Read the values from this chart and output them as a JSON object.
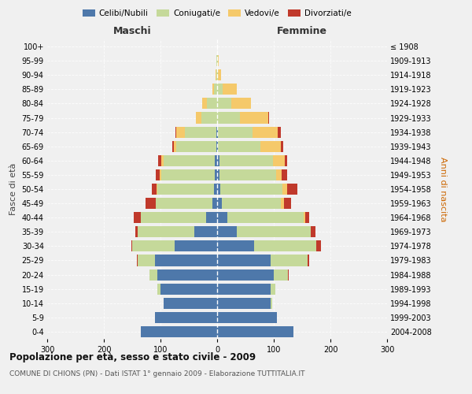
{
  "age_groups": [
    "0-4",
    "5-9",
    "10-14",
    "15-19",
    "20-24",
    "25-29",
    "30-34",
    "35-39",
    "40-44",
    "45-49",
    "50-54",
    "55-59",
    "60-64",
    "65-69",
    "70-74",
    "75-79",
    "80-84",
    "85-89",
    "90-94",
    "95-99",
    "100+"
  ],
  "birth_years": [
    "2004-2008",
    "1999-2003",
    "1994-1998",
    "1989-1993",
    "1984-1988",
    "1979-1983",
    "1974-1978",
    "1969-1973",
    "1964-1968",
    "1959-1963",
    "1954-1958",
    "1949-1953",
    "1944-1948",
    "1939-1943",
    "1934-1938",
    "1929-1933",
    "1924-1928",
    "1919-1923",
    "1914-1918",
    "1909-1913",
    "≤ 1908"
  ],
  "male": {
    "celibi": [
      135,
      110,
      95,
      100,
      105,
      110,
      75,
      40,
      20,
      8,
      5,
      4,
      4,
      2,
      2,
      0,
      0,
      0,
      0,
      0,
      0
    ],
    "coniugati": [
      0,
      0,
      0,
      5,
      15,
      30,
      75,
      100,
      115,
      100,
      100,
      95,
      90,
      70,
      55,
      28,
      18,
      5,
      2,
      1,
      0
    ],
    "vedovi": [
      0,
      0,
      0,
      0,
      0,
      0,
      0,
      0,
      0,
      1,
      2,
      2,
      5,
      5,
      15,
      10,
      8,
      4,
      1,
      0,
      0
    ],
    "divorziati": [
      0,
      0,
      0,
      0,
      0,
      1,
      2,
      5,
      12,
      18,
      8,
      8,
      5,
      2,
      2,
      0,
      0,
      0,
      0,
      0,
      0
    ]
  },
  "female": {
    "nubili": [
      135,
      105,
      95,
      95,
      100,
      95,
      65,
      35,
      18,
      8,
      5,
      4,
      4,
      2,
      2,
      0,
      0,
      0,
      0,
      0,
      0
    ],
    "coniugate": [
      0,
      0,
      2,
      8,
      25,
      65,
      110,
      130,
      135,
      105,
      110,
      100,
      95,
      75,
      60,
      40,
      25,
      10,
      2,
      1,
      0
    ],
    "vedove": [
      0,
      0,
      0,
      0,
      0,
      0,
      0,
      0,
      2,
      5,
      8,
      10,
      20,
      35,
      45,
      50,
      35,
      25,
      5,
      2,
      0
    ],
    "divorziate": [
      0,
      0,
      0,
      0,
      1,
      2,
      8,
      8,
      8,
      12,
      18,
      10,
      5,
      5,
      5,
      2,
      0,
      0,
      0,
      0,
      0
    ]
  },
  "colors": {
    "celibi_nubili": "#4e78aa",
    "coniugati": "#c5d99a",
    "vedovi": "#f5c96a",
    "divorziati": "#c0392b"
  },
  "xlim": 300,
  "title": "Popolazione per età, sesso e stato civile - 2009",
  "subtitle": "COMUNE DI CHIONS (PN) - Dati ISTAT 1° gennaio 2009 - Elaborazione TUTTITALIA.IT",
  "ylabel_left": "Fasce di età",
  "ylabel_right": "Anni di nascita",
  "xlabel_left": "Maschi",
  "xlabel_right": "Femmine",
  "background_color": "#f0f0f0"
}
